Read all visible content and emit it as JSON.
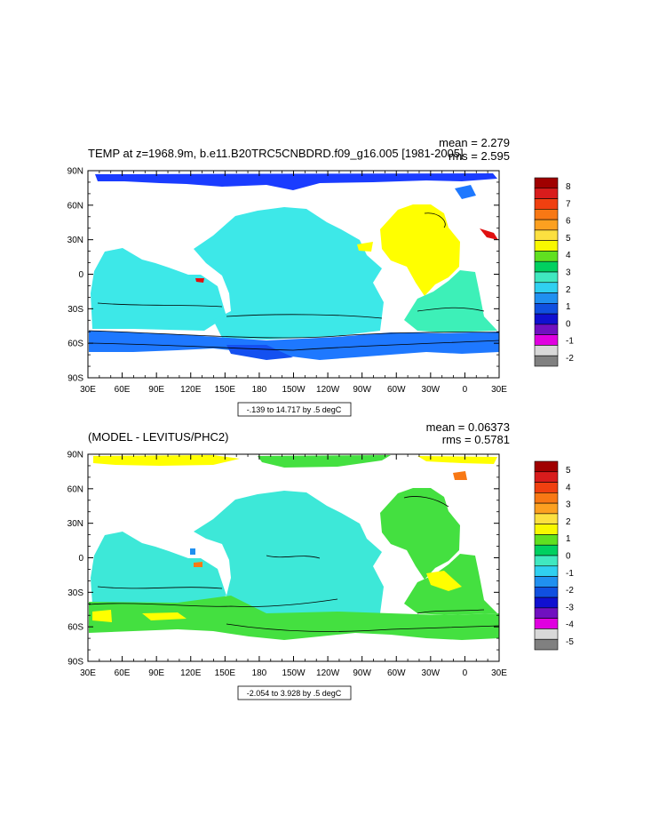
{
  "panels": [
    {
      "id": "top",
      "title": "TEMP at z=1968.9m, b.e11.B20TRC5CNBDRD.f09_g16.005 [1981-2005]",
      "mean_text": "mean = 2.279",
      "rms_text": "rms = 2.595",
      "contour_label": "-.139 to 14.717 by .5 degC",
      "colorbar": {
        "labels": [
          "8",
          "7",
          "6",
          "5",
          "4",
          "3",
          "2",
          "1",
          "0",
          "-1",
          "-2"
        ],
        "colors": [
          "#a00000",
          "#d81c1c",
          "#f04010",
          "#f87814",
          "#fca020",
          "#fce040",
          "#f8f800",
          "#60e020",
          "#00d060",
          "#40e8c0",
          "#30d0f0",
          "#2090f0",
          "#1050e0",
          "#1010d0",
          "#7010c0",
          "#e000e0",
          "#d8d8d8",
          "#808080"
        ]
      },
      "regions": {
        "arctic": "#1a3cff",
        "atlantic_north": "#ffff00",
        "atlantic_south": "#3df0b8",
        "pacific": "#3de8e8",
        "indian": "#3de8e8",
        "southern": "#1e78ff",
        "southern_deep": "#1450f0"
      }
    },
    {
      "id": "bottom",
      "title": "(MODEL - LEVITUS/PHC2)",
      "mean_text": "mean = 0.06373",
      "rms_text": "rms = 0.5781",
      "contour_label": "-2.054 to 3.928 by .5 degC",
      "colorbar": {
        "labels": [
          "5",
          "4",
          "3",
          "2",
          "1",
          "0",
          "-1",
          "-2",
          "-3",
          "-4",
          "-5"
        ],
        "colors": [
          "#a00000",
          "#d81c1c",
          "#f04010",
          "#f87814",
          "#fca020",
          "#fce040",
          "#f8f800",
          "#60e020",
          "#00d060",
          "#40e8c0",
          "#30d0f0",
          "#2090f0",
          "#1050e0",
          "#1010d0",
          "#7010c0",
          "#e000e0",
          "#d8d8d8",
          "#808080"
        ]
      },
      "regions": {
        "arctic": "#ffff00",
        "atlantic_north": "#44e040",
        "atlantic_south": "#44e040",
        "pacific": "#3de8d8",
        "indian": "#3de8d8",
        "southern": "#44e040",
        "southern_deep": "#44e040"
      }
    }
  ],
  "axes": {
    "lat_ticks": [
      "90N",
      "60N",
      "30N",
      "0",
      "30S",
      "60S",
      "90S"
    ],
    "lon_ticks": [
      "30E",
      "60E",
      "90E",
      "120E",
      "150E",
      "180",
      "150W",
      "120W",
      "90W",
      "60W",
      "30W",
      "0",
      "30E"
    ]
  }
}
